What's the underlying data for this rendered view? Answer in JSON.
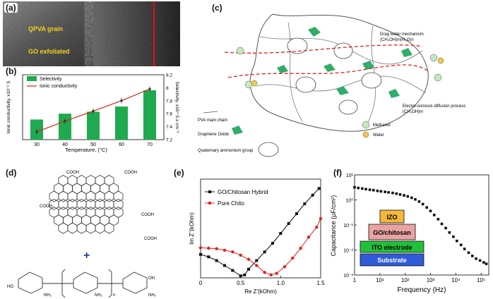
{
  "panel_a": {
    "label": "(a)",
    "annotations": [
      "QPVA grain",
      "GO exfoliated"
    ]
  },
  "panel_b": {
    "label": "(b)",
    "chart_data": {
      "type": "bar+line",
      "categories": [
        "30",
        "40",
        "50",
        "60",
        "70"
      ],
      "series": [
        {
          "name": "Selectivity",
          "kind": "bar",
          "axis": "right",
          "values": [
            7.51,
            7.6,
            7.63,
            7.71,
            7.96
          ]
        },
        {
          "name": "Ionic conductivity",
          "kind": "line",
          "axis": "left",
          "values": [
            1.2,
            2.85,
            4.4,
            6.0,
            7.8
          ]
        }
      ],
      "xlabel": "Temperature, (°C)",
      "ylabel_left": "Ionic conductivity, x10⁻² S",
      "ylabel_right": "Selectivity, x10⁴ S.s cm⁻³",
      "yticks_right": [
        "7.2",
        "7.4",
        "7.6",
        "7.8",
        "8",
        "8.2"
      ],
      "ylim_left": [
        0,
        10
      ],
      "ylim_right": [
        7.2,
        8.2
      ],
      "colors": {
        "bar": "#1faa4f",
        "line": "#d9231f"
      }
    }
  },
  "panel_c": {
    "label": "(c)",
    "texts": {
      "drag_title": "Drag water mechanism",
      "drag_formula": "(CH₃OH)m(H₂O)n",
      "eo_title": "Electro-osmosis diffusion process",
      "eo_formula": "(CH₃OH)m",
      "pva": "PVA main chain",
      "go": "Graphene Oxide",
      "qa": "Quaternary ammonium group",
      "methanol": "Methanol",
      "water": "Water"
    },
    "colors": {
      "methanol": "#c6e8c0",
      "water": "#f2c94c",
      "graphene": "#2fae6a",
      "path": "#d9231f"
    }
  },
  "panel_d": {
    "label": "(d)",
    "labels": {
      "cooh": "COOH",
      "plus": "+",
      "ho": "HO",
      "nh2": "NH₂",
      "n": "n",
      "oh": "OH"
    }
  },
  "panel_e": {
    "label": "(e)",
    "chart_data": {
      "type": "line",
      "title": "",
      "xlabel": "Re Z'(kOhm)",
      "ylabel": "Im Z''(kOhm)",
      "xticks": [
        "0",
        "0.5",
        "1.0",
        "1.5"
      ],
      "xlim": [
        0,
        1.5
      ],
      "ylim": [
        0,
        4
      ],
      "series": [
        {
          "name": "GO/Chitosan Hybrid",
          "color": "#111111",
          "marker": "square",
          "x": [
            0.0,
            0.1,
            0.2,
            0.3,
            0.4,
            0.5,
            0.55,
            0.6,
            0.7,
            0.8,
            0.9,
            1.0,
            1.1,
            1.2,
            1.3,
            1.4,
            1.48
          ],
          "y": [
            0.95,
            0.85,
            0.7,
            0.5,
            0.3,
            0.08,
            0.12,
            0.35,
            0.7,
            1.05,
            1.4,
            1.8,
            2.2,
            2.6,
            3.0,
            3.35,
            3.62
          ]
        },
        {
          "name": "Pure Chito",
          "color": "#e02020",
          "marker": "circle",
          "x": [
            0.0,
            0.1,
            0.2,
            0.3,
            0.4,
            0.5,
            0.6,
            0.7,
            0.8,
            0.88,
            0.95,
            1.05,
            1.15,
            1.25,
            1.35,
            1.45,
            1.5
          ],
          "y": [
            1.22,
            1.2,
            1.18,
            1.12,
            1.05,
            0.92,
            0.75,
            0.5,
            0.22,
            0.12,
            0.18,
            0.45,
            0.8,
            1.2,
            1.65,
            2.05,
            2.4
          ]
        }
      ]
    }
  },
  "panel_f": {
    "label": "(f)",
    "chart_data": {
      "type": "scatter",
      "title": "",
      "xlabel": "Frequency (Hz)",
      "ylabel": "Capacitance (μF/cm²)",
      "xscale": "log",
      "yscale": "log",
      "xlim": [
        1,
        200000
      ],
      "ylim": [
        0.001,
        10
      ],
      "xticks": [
        "1",
        "10¹",
        "10²",
        "10³",
        "10⁴",
        "10⁵"
      ],
      "yticks": [
        "10⁻³",
        "10⁻²",
        "10⁻¹",
        "10⁰",
        "10¹"
      ],
      "series": [
        {
          "name": "",
          "color": "#111111",
          "x": [
            1,
            1.4,
            2,
            2.8,
            4,
            5.6,
            8,
            11,
            16,
            22,
            32,
            45,
            63,
            90,
            126,
            180,
            250,
            355,
            500,
            710,
            1000,
            1400,
            2000,
            2800,
            4000,
            5600,
            8000,
            11000,
            16000,
            22000,
            32000,
            45000,
            63000,
            90000,
            126000,
            160000
          ],
          "y": [
            3.2,
            3.0,
            2.85,
            2.7,
            2.55,
            2.45,
            2.3,
            2.2,
            2.1,
            2.0,
            1.9,
            1.78,
            1.65,
            1.52,
            1.38,
            1.22,
            1.05,
            0.86,
            0.68,
            0.5,
            0.36,
            0.25,
            0.17,
            0.11,
            0.075,
            0.05,
            0.034,
            0.023,
            0.016,
            0.011,
            0.0078,
            0.0058,
            0.0045,
            0.0038,
            0.0032,
            0.0028
          ]
        }
      ],
      "stack_layers": [
        {
          "label": "IZO",
          "color": "#f5b63a"
        },
        {
          "label": "GO/chitosan",
          "color": "#e8a3a3"
        },
        {
          "label": "ITO electrode",
          "color": "#22c03a"
        },
        {
          "label": "Substrate",
          "color": "#2f5bd8"
        }
      ]
    }
  }
}
